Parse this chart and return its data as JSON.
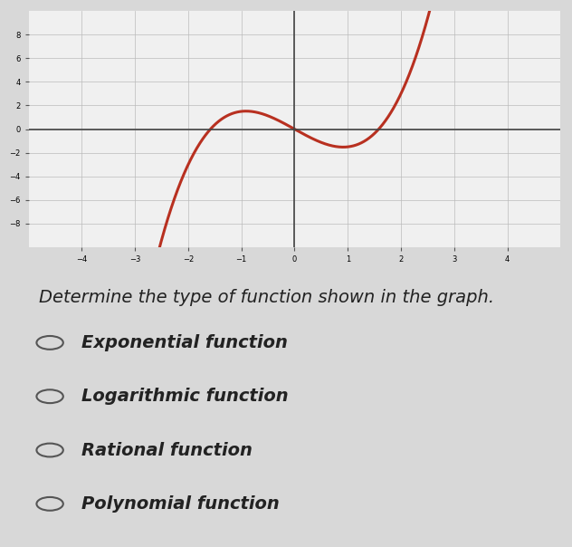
{
  "title": "Determine the type of function shown in the graph.",
  "options": [
    "Exponential function",
    "Logarithmic function",
    "Rational function",
    "Polynomial function"
  ],
  "bg_color": "#d8d8d8",
  "graph_bg": "#f0f0f0",
  "curve_color": "#b83020",
  "curve_linewidth": 2.2,
  "xmin": -5,
  "xmax": 5,
  "ymin": -10,
  "ymax": 10,
  "xticks": [
    -4,
    -3,
    -2,
    -1,
    0,
    1,
    2,
    3,
    4
  ],
  "yticks": [
    -8,
    -6,
    -4,
    -2,
    0,
    2,
    4,
    6,
    8
  ],
  "question_fontsize": 14,
  "option_fontsize": 14
}
